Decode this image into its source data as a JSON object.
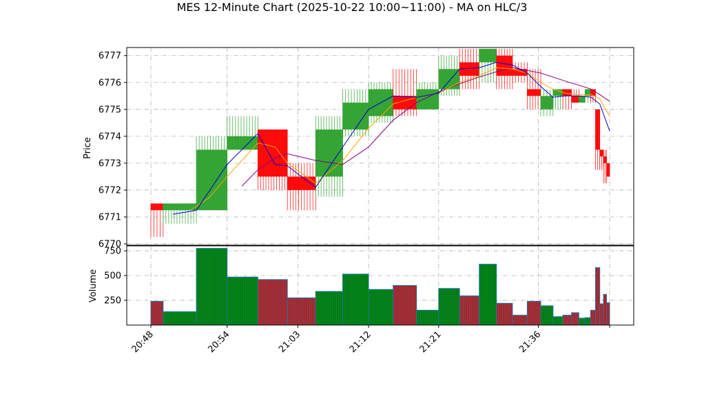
{
  "chart_data": {
    "type": "ohlc-bar-with-volume",
    "title": "MES 12-Minute Chart (2025-10-22 10:00~11:00) - MA on HLC/3",
    "price_panel": {
      "ylabel": "Price",
      "ylim": [
        6769.95,
        6777.3
      ],
      "yticks": [
        6770,
        6771,
        6772,
        6773,
        6774,
        6775,
        6776,
        6777
      ],
      "grid": true
    },
    "volume_panel": {
      "ylabel": "Volume",
      "ylim": [
        0,
        800
      ],
      "yticks": [
        250,
        500,
        750
      ],
      "grid": true
    },
    "x_tick_labels": [
      "20:48",
      "20:54",
      "21:03",
      "21:12",
      "21:21",
      "21:36"
    ],
    "colors": {
      "up": "#2ca02c",
      "down": "#ff0000",
      "volume_up": "#008000",
      "volume_down": "#b22222",
      "volume_edge": "#1f77b4",
      "ma_fast": "#0000cd",
      "ma_mid": "#ffa500",
      "ma_slow": "#800080",
      "grid": "#b0b0b0"
    },
    "bars": [
      {
        "x0": 0.0,
        "x1": 1.0,
        "open": 6771.5,
        "close": 6771.25,
        "high": 6771.5,
        "low": 6770.25,
        "volume": 240
      },
      {
        "x0": 1.0,
        "x1": 3.7,
        "open": 6771.25,
        "close": 6771.5,
        "high": 6771.5,
        "low": 6770.75,
        "volume": 135
      },
      {
        "x0": 3.7,
        "x1": 6.2,
        "open": 6771.25,
        "close": 6773.5,
        "high": 6774.0,
        "low": 6771.25,
        "volume": 775
      },
      {
        "x0": 6.2,
        "x1": 8.7,
        "open": 6773.5,
        "close": 6774.0,
        "high": 6774.75,
        "low": 6773.5,
        "volume": 485
      },
      {
        "x0": 8.7,
        "x1": 11.1,
        "open": 6774.25,
        "close": 6772.5,
        "high": 6774.25,
        "low": 6772.0,
        "volume": 460
      },
      {
        "x0": 11.1,
        "x1": 13.4,
        "open": 6772.5,
        "close": 6772.0,
        "high": 6773.0,
        "low": 6771.25,
        "volume": 275
      },
      {
        "x0": 13.4,
        "x1": 15.6,
        "open": 6772.5,
        "close": 6774.25,
        "high": 6774.75,
        "low": 6771.75,
        "volume": 340
      },
      {
        "x0": 15.6,
        "x1": 17.7,
        "open": 6774.25,
        "close": 6775.25,
        "high": 6775.75,
        "low": 6774.0,
        "volume": 515
      },
      {
        "x0": 17.7,
        "x1": 19.7,
        "open": 6774.75,
        "close": 6775.75,
        "high": 6776.0,
        "low": 6774.5,
        "volume": 360
      },
      {
        "x0": 19.7,
        "x1": 21.6,
        "open": 6775.5,
        "close": 6775.0,
        "high": 6776.5,
        "low": 6774.75,
        "volume": 400
      },
      {
        "x0": 21.6,
        "x1": 23.4,
        "open": 6775.0,
        "close": 6775.75,
        "high": 6776.0,
        "low": 6775.0,
        "volume": 150
      },
      {
        "x0": 23.4,
        "x1": 25.1,
        "open": 6775.75,
        "close": 6776.5,
        "high": 6777.0,
        "low": 6775.5,
        "volume": 370
      },
      {
        "x0": 25.1,
        "x1": 26.7,
        "open": 6776.75,
        "close": 6776.25,
        "high": 6777.25,
        "low": 6775.75,
        "volume": 295
      },
      {
        "x0": 26.7,
        "x1": 28.1,
        "open": 6776.75,
        "close": 6777.25,
        "high": 6777.25,
        "low": 6776.0,
        "volume": 615
      },
      {
        "x0": 28.1,
        "x1": 29.4,
        "open": 6777.0,
        "close": 6776.25,
        "high": 6777.25,
        "low": 6775.75,
        "volume": 220
      },
      {
        "x0": 29.4,
        "x1": 30.6,
        "open": 6776.5,
        "close": 6776.25,
        "high": 6776.75,
        "low": 6776.0,
        "volume": 100
      },
      {
        "x0": 30.6,
        "x1": 31.7,
        "open": 6775.75,
        "close": 6775.5,
        "high": 6776.5,
        "low": 6775.0,
        "volume": 240
      },
      {
        "x0": 31.7,
        "x1": 32.7,
        "open": 6775.0,
        "close": 6775.5,
        "high": 6775.75,
        "low": 6774.75,
        "volume": 195
      },
      {
        "x0": 32.7,
        "x1": 33.5,
        "open": 6775.5,
        "close": 6775.75,
        "high": 6775.75,
        "low": 6775.0,
        "volume": 85
      },
      {
        "x0": 33.5,
        "x1": 34.2,
        "open": 6775.75,
        "close": 6775.5,
        "high": 6775.75,
        "low": 6775.0,
        "volume": 100
      },
      {
        "x0": 34.2,
        "x1": 34.8,
        "open": 6775.5,
        "close": 6775.25,
        "high": 6775.75,
        "low": 6775.25,
        "volume": 125
      },
      {
        "x0": 34.8,
        "x1": 35.3,
        "open": 6775.25,
        "close": 6775.5,
        "high": 6775.5,
        "low": 6775.25,
        "volume": 70
      },
      {
        "x0": 35.3,
        "x1": 35.75,
        "open": 6775.5,
        "close": 6775.75,
        "high": 6775.75,
        "low": 6775.25,
        "volume": 75
      },
      {
        "x0": 35.75,
        "x1": 36.15,
        "open": 6775.75,
        "close": 6775.5,
        "high": 6775.75,
        "low": 6775.25,
        "volume": 150
      },
      {
        "x0": 36.15,
        "x1": 36.5,
        "open": 6775.0,
        "close": 6773.5,
        "high": 6775.0,
        "low": 6772.75,
        "volume": 580
      },
      {
        "x0": 36.5,
        "x1": 36.8,
        "open": 6773.5,
        "close": 6773.25,
        "high": 6773.5,
        "low": 6772.75,
        "volume": 215
      },
      {
        "x0": 36.8,
        "x1": 37.05,
        "open": 6773.25,
        "close": 6773.0,
        "high": 6773.5,
        "low": 6772.25,
        "volume": 310
      },
      {
        "x0": 37.05,
        "x1": 37.3,
        "open": 6773.0,
        "close": 6772.5,
        "high": 6773.0,
        "low": 6772.5,
        "volume": 225
      }
    ],
    "ma_fast": [
      [
        1.8,
        6771.1
      ],
      [
        3.7,
        6771.25
      ],
      [
        6.2,
        6772.95
      ],
      [
        8.7,
        6774.1
      ],
      [
        10.1,
        6772.95
      ],
      [
        11.1,
        6772.9
      ],
      [
        13.4,
        6772.1
      ],
      [
        15.6,
        6773.6
      ],
      [
        17.7,
        6775.0
      ],
      [
        19.7,
        6775.5
      ],
      [
        21.6,
        6775.45
      ],
      [
        23.4,
        6775.6
      ],
      [
        25.1,
        6776.5
      ],
      [
        26.7,
        6776.55
      ],
      [
        28.1,
        6776.75
      ],
      [
        29.4,
        6776.65
      ],
      [
        30.6,
        6776.35
      ],
      [
        31.7,
        6775.85
      ],
      [
        32.7,
        6775.45
      ],
      [
        33.7,
        6775.5
      ],
      [
        34.8,
        6775.5
      ],
      [
        35.8,
        6775.45
      ],
      [
        36.5,
        6775.2
      ],
      [
        37.3,
        6774.2
      ]
    ],
    "ma_mid": [
      [
        3.2,
        6771.25
      ],
      [
        4.7,
        6771.7
      ],
      [
        6.2,
        6772.5
      ],
      [
        7.7,
        6773.25
      ],
      [
        8.7,
        6773.75
      ],
      [
        10.1,
        6773.6
      ],
      [
        11.1,
        6773.0
      ],
      [
        13.4,
        6772.25
      ],
      [
        15.6,
        6773.1
      ],
      [
        17.7,
        6774.3
      ],
      [
        19.7,
        6775.2
      ],
      [
        21.6,
        6775.45
      ],
      [
        23.4,
        6775.6
      ],
      [
        25.1,
        6776.0
      ],
      [
        26.7,
        6776.25
      ],
      [
        28.1,
        6776.55
      ],
      [
        29.4,
        6776.5
      ],
      [
        30.6,
        6776.35
      ],
      [
        31.7,
        6776.0
      ],
      [
        32.7,
        6775.75
      ],
      [
        33.7,
        6775.6
      ],
      [
        34.8,
        6775.55
      ],
      [
        35.8,
        6775.55
      ],
      [
        36.5,
        6775.4
      ],
      [
        37.3,
        6774.75
      ]
    ],
    "ma_slow": [
      [
        7.4,
        6772.15
      ],
      [
        8.7,
        6772.75
      ],
      [
        10.1,
        6773.2
      ],
      [
        11.1,
        6773.35
      ],
      [
        13.4,
        6773.1
      ],
      [
        15.6,
        6772.95
      ],
      [
        17.7,
        6773.6
      ],
      [
        19.7,
        6774.6
      ],
      [
        21.6,
        6775.25
      ],
      [
        23.4,
        6775.65
      ],
      [
        25.1,
        6775.95
      ],
      [
        26.7,
        6776.2
      ],
      [
        28.1,
        6776.4
      ],
      [
        29.4,
        6776.55
      ],
      [
        30.6,
        6776.45
      ],
      [
        31.7,
        6776.35
      ],
      [
        32.7,
        6776.2
      ],
      [
        33.7,
        6776.05
      ],
      [
        34.8,
        6775.9
      ],
      [
        35.8,
        6775.75
      ],
      [
        36.5,
        6775.55
      ],
      [
        37.3,
        6775.3
      ]
    ]
  }
}
